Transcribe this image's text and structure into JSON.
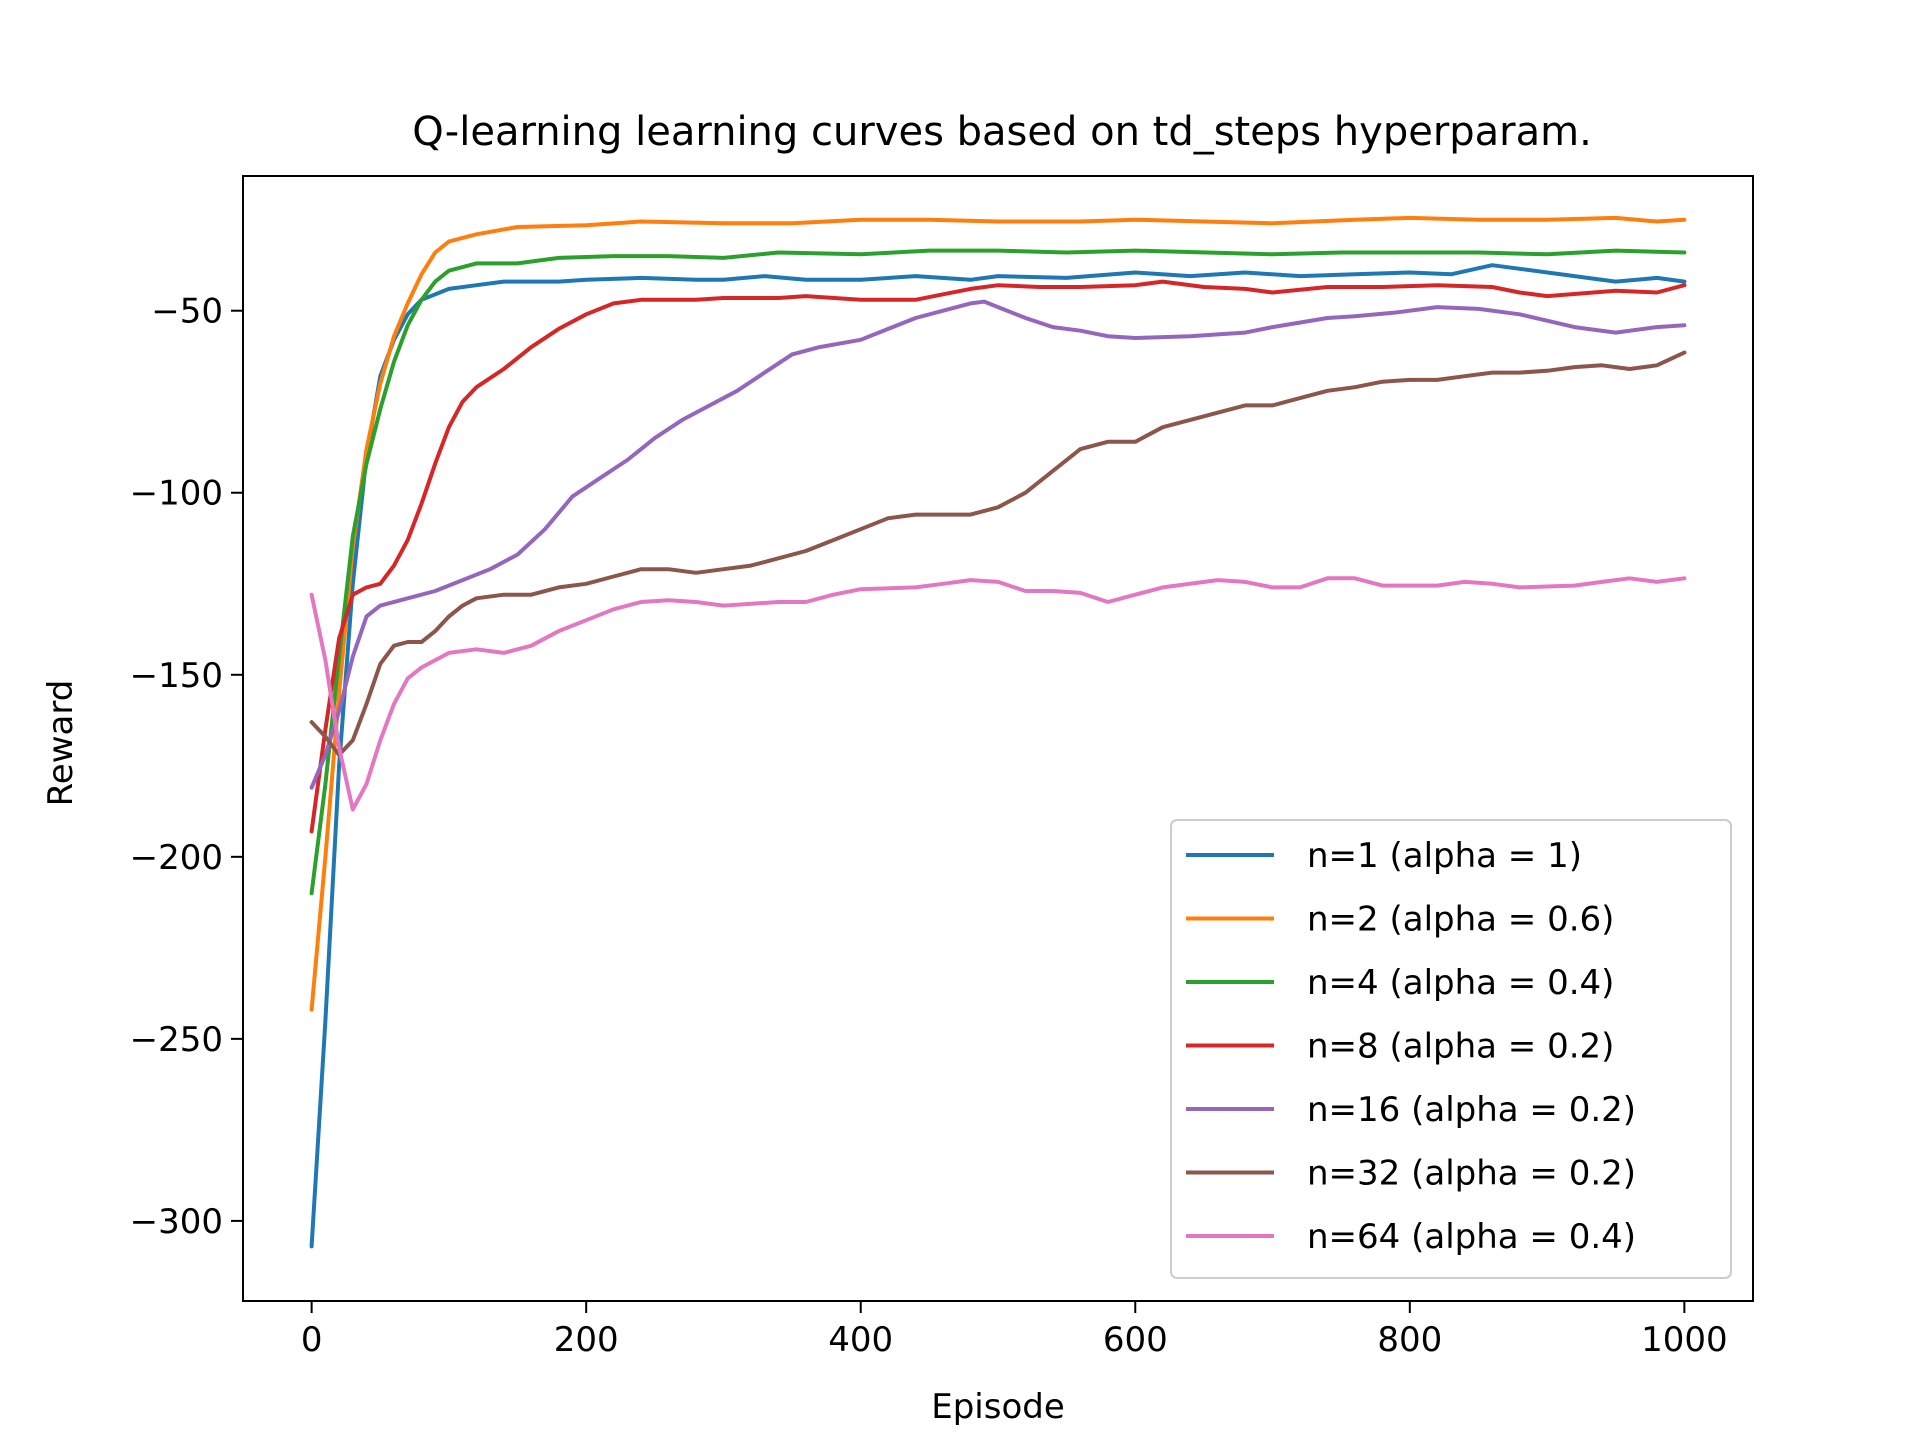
{
  "chart_data": {
    "type": "line",
    "title": "Q-learning learning curves based on td_steps hyperparam.",
    "xlabel": "Episode",
    "ylabel": "Reward",
    "xlim": [
      -50,
      1050
    ],
    "ylim": [
      -322,
      -13
    ],
    "xticks": [
      0,
      200,
      400,
      600,
      800,
      1000
    ],
    "yticks": [
      -300,
      -250,
      -200,
      -150,
      -100,
      -50
    ],
    "grid": false,
    "legend_position": "lower-right",
    "series": [
      {
        "name": "n=1 (alpha = 1)",
        "color": "#1f77b4",
        "points": [
          [
            0,
            -307
          ],
          [
            10,
            -245
          ],
          [
            20,
            -175
          ],
          [
            30,
            -125
          ],
          [
            40,
            -90
          ],
          [
            50,
            -68
          ],
          [
            60,
            -58
          ],
          [
            70,
            -51
          ],
          [
            80,
            -47
          ],
          [
            100,
            -44
          ],
          [
            120,
            -43
          ],
          [
            140,
            -42
          ],
          [
            160,
            -42
          ],
          [
            180,
            -42
          ],
          [
            200,
            -41.5
          ],
          [
            240,
            -41
          ],
          [
            280,
            -41.5
          ],
          [
            300,
            -41.5
          ],
          [
            330,
            -40.5
          ],
          [
            360,
            -41.5
          ],
          [
            400,
            -41.5
          ],
          [
            440,
            -40.5
          ],
          [
            480,
            -41.5
          ],
          [
            500,
            -40.5
          ],
          [
            550,
            -41
          ],
          [
            600,
            -39.5
          ],
          [
            640,
            -40.5
          ],
          [
            680,
            -39.5
          ],
          [
            720,
            -40.5
          ],
          [
            760,
            -40
          ],
          [
            800,
            -39.5
          ],
          [
            830,
            -40
          ],
          [
            860,
            -37.5
          ],
          [
            880,
            -38.5
          ],
          [
            920,
            -40.5
          ],
          [
            950,
            -42
          ],
          [
            980,
            -41
          ],
          [
            1000,
            -42
          ]
        ]
      },
      {
        "name": "n=2 (alpha = 0.6)",
        "color": "#ff7f0e",
        "points": [
          [
            0,
            -242
          ],
          [
            10,
            -200
          ],
          [
            20,
            -155
          ],
          [
            30,
            -115
          ],
          [
            40,
            -88
          ],
          [
            50,
            -70
          ],
          [
            60,
            -57
          ],
          [
            70,
            -48
          ],
          [
            80,
            -40
          ],
          [
            90,
            -34
          ],
          [
            100,
            -31
          ],
          [
            120,
            -29
          ],
          [
            150,
            -27
          ],
          [
            200,
            -26.5
          ],
          [
            240,
            -25.5
          ],
          [
            300,
            -26
          ],
          [
            350,
            -26
          ],
          [
            400,
            -25
          ],
          [
            450,
            -25
          ],
          [
            500,
            -25.5
          ],
          [
            560,
            -25.5
          ],
          [
            600,
            -25
          ],
          [
            650,
            -25.5
          ],
          [
            700,
            -26
          ],
          [
            760,
            -25
          ],
          [
            800,
            -24.5
          ],
          [
            850,
            -25
          ],
          [
            900,
            -25
          ],
          [
            950,
            -24.5
          ],
          [
            980,
            -25.5
          ],
          [
            1000,
            -25
          ]
        ]
      },
      {
        "name": "n=4 (alpha = 0.4)",
        "color": "#2ca02c",
        "points": [
          [
            0,
            -210
          ],
          [
            10,
            -180
          ],
          [
            20,
            -145
          ],
          [
            30,
            -112
          ],
          [
            40,
            -92
          ],
          [
            50,
            -77
          ],
          [
            60,
            -64
          ],
          [
            70,
            -54
          ],
          [
            80,
            -47
          ],
          [
            90,
            -42
          ],
          [
            100,
            -39
          ],
          [
            120,
            -37
          ],
          [
            150,
            -37
          ],
          [
            180,
            -35.5
          ],
          [
            220,
            -35
          ],
          [
            260,
            -35
          ],
          [
            300,
            -35.5
          ],
          [
            340,
            -34
          ],
          [
            400,
            -34.5
          ],
          [
            450,
            -33.5
          ],
          [
            500,
            -33.5
          ],
          [
            550,
            -34
          ],
          [
            600,
            -33.5
          ],
          [
            700,
            -34.5
          ],
          [
            750,
            -34
          ],
          [
            800,
            -34
          ],
          [
            850,
            -34
          ],
          [
            900,
            -34.5
          ],
          [
            950,
            -33.5
          ],
          [
            1000,
            -34
          ]
        ]
      },
      {
        "name": "n=8 (alpha = 0.2)",
        "color": "#d62728",
        "points": [
          [
            0,
            -193
          ],
          [
            10,
            -165
          ],
          [
            20,
            -140
          ],
          [
            30,
            -128
          ],
          [
            40,
            -126
          ],
          [
            50,
            -125
          ],
          [
            60,
            -120
          ],
          [
            70,
            -113
          ],
          [
            80,
            -103
          ],
          [
            90,
            -92
          ],
          [
            100,
            -82
          ],
          [
            110,
            -75
          ],
          [
            120,
            -71
          ],
          [
            140,
            -66
          ],
          [
            160,
            -60
          ],
          [
            180,
            -55
          ],
          [
            200,
            -51
          ],
          [
            220,
            -48
          ],
          [
            240,
            -47
          ],
          [
            280,
            -47
          ],
          [
            300,
            -46.5
          ],
          [
            340,
            -46.5
          ],
          [
            360,
            -46
          ],
          [
            400,
            -47
          ],
          [
            440,
            -47
          ],
          [
            460,
            -45.5
          ],
          [
            480,
            -44
          ],
          [
            500,
            -43
          ],
          [
            530,
            -43.5
          ],
          [
            560,
            -43.5
          ],
          [
            600,
            -43
          ],
          [
            620,
            -42
          ],
          [
            650,
            -43.5
          ],
          [
            680,
            -44
          ],
          [
            700,
            -45
          ],
          [
            740,
            -43.5
          ],
          [
            780,
            -43.5
          ],
          [
            820,
            -43
          ],
          [
            860,
            -43.5
          ],
          [
            880,
            -45
          ],
          [
            900,
            -46
          ],
          [
            950,
            -44.5
          ],
          [
            980,
            -45
          ],
          [
            1000,
            -43
          ]
        ]
      },
      {
        "name": "n=16 (alpha = 0.2)",
        "color": "#9467bd",
        "points": [
          [
            0,
            -181
          ],
          [
            10,
            -172
          ],
          [
            20,
            -160
          ],
          [
            30,
            -145
          ],
          [
            40,
            -134
          ],
          [
            50,
            -131
          ],
          [
            70,
            -129
          ],
          [
            90,
            -127
          ],
          [
            110,
            -124
          ],
          [
            130,
            -121
          ],
          [
            150,
            -117
          ],
          [
            170,
            -110
          ],
          [
            190,
            -101
          ],
          [
            210,
            -96
          ],
          [
            230,
            -91
          ],
          [
            250,
            -85
          ],
          [
            270,
            -80
          ],
          [
            290,
            -76
          ],
          [
            310,
            -72
          ],
          [
            330,
            -67
          ],
          [
            350,
            -62
          ],
          [
            370,
            -60
          ],
          [
            400,
            -58
          ],
          [
            420,
            -55
          ],
          [
            440,
            -52
          ],
          [
            460,
            -50
          ],
          [
            480,
            -48
          ],
          [
            490,
            -47.5
          ],
          [
            500,
            -49
          ],
          [
            520,
            -52
          ],
          [
            540,
            -54.5
          ],
          [
            560,
            -55.5
          ],
          [
            580,
            -57
          ],
          [
            600,
            -57.5
          ],
          [
            640,
            -57
          ],
          [
            660,
            -56.5
          ],
          [
            680,
            -56
          ],
          [
            700,
            -54.5
          ],
          [
            740,
            -52
          ],
          [
            760,
            -51.5
          ],
          [
            790,
            -50.5
          ],
          [
            820,
            -49
          ],
          [
            850,
            -49.5
          ],
          [
            880,
            -51
          ],
          [
            920,
            -54.5
          ],
          [
            950,
            -56
          ],
          [
            980,
            -54.5
          ],
          [
            1000,
            -54
          ]
        ]
      },
      {
        "name": "n=32 (alpha = 0.2)",
        "color": "#8c564b",
        "points": [
          [
            0,
            -163
          ],
          [
            10,
            -167
          ],
          [
            20,
            -172
          ],
          [
            30,
            -168
          ],
          [
            40,
            -158
          ],
          [
            50,
            -147
          ],
          [
            60,
            -142
          ],
          [
            70,
            -141
          ],
          [
            80,
            -141
          ],
          [
            90,
            -138
          ],
          [
            100,
            -134
          ],
          [
            110,
            -131
          ],
          [
            120,
            -129
          ],
          [
            140,
            -128
          ],
          [
            160,
            -128
          ],
          [
            180,
            -126
          ],
          [
            200,
            -125
          ],
          [
            220,
            -123
          ],
          [
            240,
            -121
          ],
          [
            260,
            -121
          ],
          [
            280,
            -122
          ],
          [
            300,
            -121
          ],
          [
            320,
            -120
          ],
          [
            340,
            -118
          ],
          [
            360,
            -116
          ],
          [
            380,
            -113
          ],
          [
            400,
            -110
          ],
          [
            420,
            -107
          ],
          [
            440,
            -106
          ],
          [
            460,
            -106
          ],
          [
            480,
            -106
          ],
          [
            500,
            -104
          ],
          [
            520,
            -100
          ],
          [
            540,
            -94
          ],
          [
            560,
            -88
          ],
          [
            580,
            -86
          ],
          [
            600,
            -86
          ],
          [
            620,
            -82
          ],
          [
            640,
            -80
          ],
          [
            660,
            -78
          ],
          [
            680,
            -76
          ],
          [
            700,
            -76
          ],
          [
            720,
            -74
          ],
          [
            740,
            -72
          ],
          [
            760,
            -71
          ],
          [
            780,
            -69.5
          ],
          [
            800,
            -69
          ],
          [
            820,
            -69
          ],
          [
            840,
            -68
          ],
          [
            860,
            -67
          ],
          [
            880,
            -67
          ],
          [
            900,
            -66.5
          ],
          [
            920,
            -65.5
          ],
          [
            940,
            -65
          ],
          [
            960,
            -66
          ],
          [
            980,
            -65
          ],
          [
            1000,
            -61.5
          ]
        ]
      },
      {
        "name": "n=64 (alpha = 0.4)",
        "color": "#e377c2",
        "points": [
          [
            0,
            -128
          ],
          [
            10,
            -146
          ],
          [
            20,
            -170
          ],
          [
            30,
            -187
          ],
          [
            40,
            -180
          ],
          [
            50,
            -168
          ],
          [
            60,
            -158
          ],
          [
            70,
            -151
          ],
          [
            80,
            -148
          ],
          [
            100,
            -144
          ],
          [
            120,
            -143
          ],
          [
            140,
            -144
          ],
          [
            160,
            -142
          ],
          [
            180,
            -138
          ],
          [
            200,
            -135
          ],
          [
            220,
            -132
          ],
          [
            240,
            -130
          ],
          [
            260,
            -129.5
          ],
          [
            280,
            -130
          ],
          [
            300,
            -131
          ],
          [
            340,
            -130
          ],
          [
            360,
            -130
          ],
          [
            380,
            -128
          ],
          [
            400,
            -126.5
          ],
          [
            440,
            -126
          ],
          [
            460,
            -125
          ],
          [
            480,
            -124
          ],
          [
            500,
            -124.5
          ],
          [
            520,
            -127
          ],
          [
            540,
            -127
          ],
          [
            560,
            -127.5
          ],
          [
            580,
            -130
          ],
          [
            600,
            -128
          ],
          [
            620,
            -126
          ],
          [
            660,
            -124
          ],
          [
            680,
            -124.5
          ],
          [
            700,
            -126
          ],
          [
            720,
            -126
          ],
          [
            740,
            -123.5
          ],
          [
            760,
            -123.5
          ],
          [
            780,
            -125.5
          ],
          [
            820,
            -125.5
          ],
          [
            840,
            -124.5
          ],
          [
            860,
            -125
          ],
          [
            880,
            -126
          ],
          [
            920,
            -125.5
          ],
          [
            940,
            -124.5
          ],
          [
            960,
            -123.5
          ],
          [
            980,
            -124.5
          ],
          [
            1000,
            -123.5
          ]
        ]
      }
    ]
  }
}
